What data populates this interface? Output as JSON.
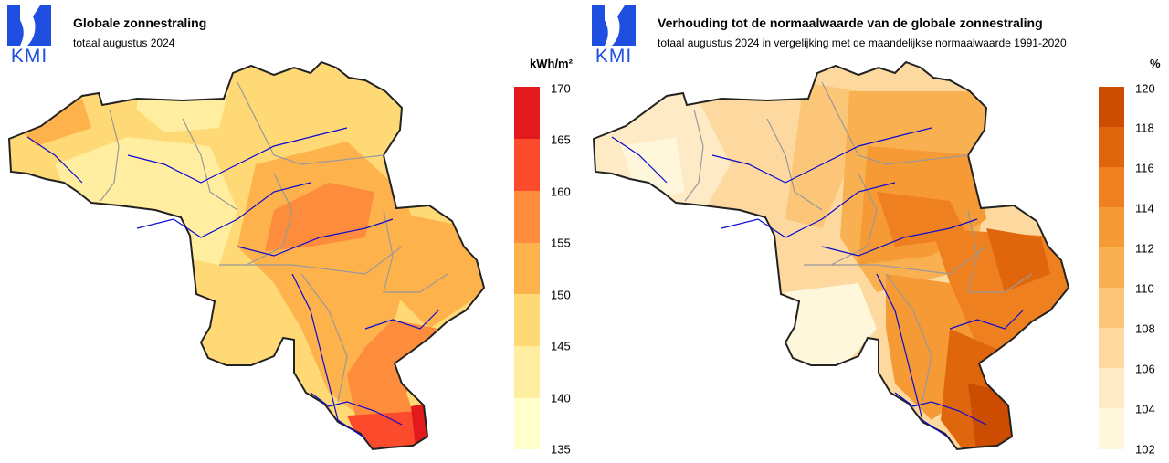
{
  "maps": [
    {
      "title": "Globale zonnestraling",
      "subtitle": "totaal augustus 2024",
      "logo_text": "KMI",
      "unit": "kWh/m²",
      "legend": {
        "ticks": [
          "170",
          "165",
          "160",
          "155",
          "150",
          "145",
          "140",
          "135"
        ],
        "colors": [
          "#e31a1c",
          "#fb4a2c",
          "#fd8d3c",
          "#feb24c",
          "#fed976",
          "#ffeda0",
          "#ffffcc"
        ]
      }
    },
    {
      "title": "Verhouding tot de normaalwaarde van de globale zonnestraling",
      "subtitle": "totaal augustus 2024 in vergelijking met de maandelijkse normaalwaarde 1991-2020",
      "logo_text": "KMI",
      "unit": "%",
      "legend": {
        "ticks": [
          "120",
          "118",
          "116",
          "114",
          "112",
          "110",
          "108",
          "106",
          "104",
          "102"
        ],
        "colors": [
          "#cc4c02",
          "#e0660e",
          "#ef8020",
          "#f59a35",
          "#f9b050",
          "#fcc679",
          "#fdd9a0",
          "#feeac4",
          "#fff7dc"
        ]
      }
    }
  ],
  "colors": {
    "kmi_blue": "#1f4fe0",
    "border": "#222222",
    "river": "#0a0ad0",
    "province": "#999999"
  }
}
